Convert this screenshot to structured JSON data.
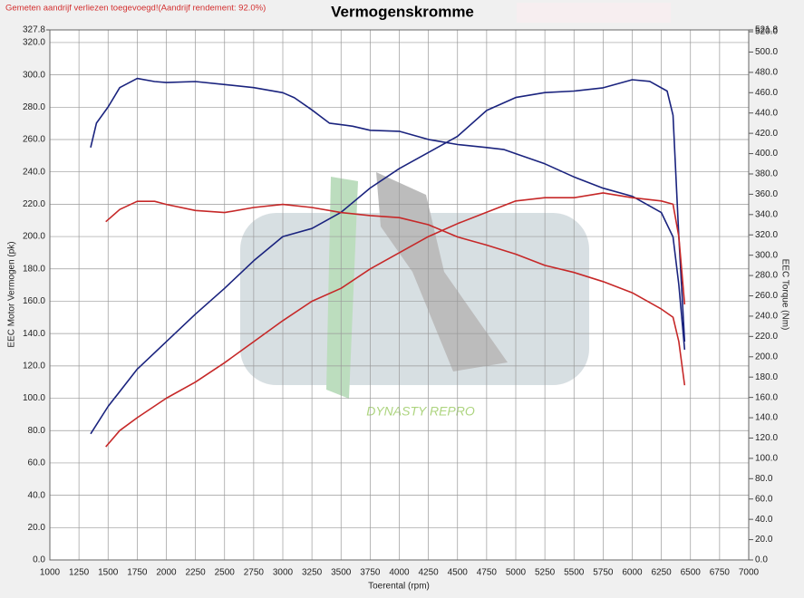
{
  "chart_data": {
    "type": "line",
    "title": "Vermogenskromme",
    "note": "Gemeten aandrijf verliezen toegevoegd!(Aandrijf rendement: 92.0%)",
    "watermark": "DYNASTY REPRO",
    "x_label": "Toerental (rpm)",
    "y_label": "EEC Motor Vermogen (pk)",
    "y2_label": "EEC Torque (Nm)",
    "grid": true,
    "xlim": [
      1000,
      7000
    ],
    "xticks": [
      1000,
      1250,
      1500,
      1750,
      2000,
      2250,
      2500,
      2750,
      3000,
      3250,
      3500,
      3750,
      4000,
      4250,
      4500,
      4750,
      5000,
      5250,
      5500,
      5750,
      6000,
      6250,
      6500,
      6750,
      7000
    ],
    "ylim": [
      0,
      327.8
    ],
    "yticks": [
      {
        "value": 0,
        "label": "0.0"
      },
      {
        "value": 20,
        "label": "20.0"
      },
      {
        "value": 40,
        "label": "40.0"
      },
      {
        "value": 60,
        "label": "60.0"
      },
      {
        "value": 80,
        "label": "80.0"
      },
      {
        "value": 100,
        "label": "100.0"
      },
      {
        "value": 120,
        "label": "120.0"
      },
      {
        "value": 140,
        "label": "140.0"
      },
      {
        "value": 160,
        "label": "160.0"
      },
      {
        "value": 180,
        "label": "180.0"
      },
      {
        "value": 200,
        "label": "200.0"
      },
      {
        "value": 220,
        "label": "220.0"
      },
      {
        "value": 240,
        "label": "240.0"
      },
      {
        "value": 260,
        "label": "260.0"
      },
      {
        "value": 280,
        "label": "280.0"
      },
      {
        "value": 300,
        "label": "300.0"
      },
      {
        "value": 320,
        "label": "320.0"
      },
      327.8
    ],
    "y2lim": [
      0,
      521.8
    ],
    "y2ticks": [
      {
        "value": 0,
        "label": "0.0"
      },
      {
        "value": 20,
        "label": "20.0"
      },
      {
        "value": 40,
        "label": "40.0"
      },
      {
        "value": 60,
        "label": "60.0"
      },
      {
        "value": 80,
        "label": "80.0"
      },
      {
        "value": 100,
        "label": "100.0"
      },
      {
        "value": 120,
        "label": "120.0"
      },
      {
        "value": 140,
        "label": "140.0"
      },
      {
        "value": 160,
        "label": "160.0"
      },
      {
        "value": 180,
        "label": "180.0"
      },
      {
        "value": 200,
        "label": "200.0"
      },
      {
        "value": 220,
        "label": "220.0"
      },
      {
        "value": 240,
        "label": "240.0"
      },
      {
        "value": 260,
        "label": "260.0"
      },
      {
        "value": 280,
        "label": "280.0"
      },
      {
        "value": 300,
        "label": "300.0"
      },
      {
        "value": 320,
        "label": "320.0"
      },
      {
        "value": 340,
        "label": "340.0"
      },
      {
        "value": 360,
        "label": "360.0"
      },
      {
        "value": 380,
        "label": "380.0"
      },
      {
        "value": 400,
        "label": "400.0"
      },
      {
        "value": 420,
        "label": "420.0"
      },
      {
        "value": 440,
        "label": "440.0"
      },
      {
        "value": 460,
        "label": "460.0"
      },
      {
        "value": 480,
        "label": "480.0"
      },
      {
        "value": 500,
        "label": "500.0"
      },
      {
        "value": 520,
        "label": "520.0"
      },
      521.8
    ],
    "series": [
      {
        "color": "#1a237e",
        "axis": "y",
        "x": [
          1350,
          1500,
          1750,
          2000,
          2250,
          2500,
          2750,
          3000,
          3250,
          3500,
          3750,
          4000,
          4250,
          4500,
          4750,
          5000,
          5250,
          5500,
          5750,
          6000,
          6150,
          6300,
          6350,
          6400,
          6450
        ],
        "values": [
          78,
          95,
          118,
          135,
          152,
          168,
          185,
          200,
          205,
          215,
          230,
          242,
          252,
          262,
          278,
          286,
          289,
          290,
          292,
          297,
          296,
          290,
          275,
          200,
          135
        ]
      },
      {
        "color": "#1a237e",
        "axis": "y2",
        "x": [
          1350,
          1400,
          1500,
          1600,
          1750,
          1900,
          2000,
          2250,
          2500,
          2750,
          3000,
          3100,
          3250,
          3400,
          3600,
          3750,
          4000,
          4250,
          4500,
          4750,
          4900,
          5000,
          5250,
          5500,
          5750,
          6000,
          6250,
          6350,
          6400,
          6450
        ],
        "values": [
          406,
          430,
          446,
          465,
          474,
          471,
          470,
          471,
          468,
          465,
          460,
          455,
          443,
          430,
          427,
          423,
          422,
          414,
          409,
          406,
          404,
          400,
          390,
          377,
          366,
          358,
          342,
          318,
          271,
          207
        ]
      },
      {
        "color": "#c62828",
        "axis": "y",
        "x": [
          1480,
          1600,
          1750,
          2000,
          2250,
          2500,
          2750,
          3000,
          3250,
          3500,
          3750,
          4000,
          4250,
          4500,
          4750,
          5000,
          5250,
          5500,
          5750,
          6000,
          6250,
          6350,
          6400,
          6450
        ],
        "values": [
          70,
          80,
          88,
          100,
          110,
          122,
          135,
          148,
          160,
          168,
          180,
          190,
          200,
          208,
          215,
          222,
          224,
          224,
          227,
          224,
          222,
          220,
          200,
          158
        ]
      },
      {
        "color": "#c62828",
        "axis": "y2",
        "x": [
          1480,
          1600,
          1750,
          1900,
          2000,
          2250,
          2500,
          2750,
          3000,
          3250,
          3500,
          3750,
          4000,
          4250,
          4500,
          4750,
          5000,
          5250,
          5500,
          5750,
          6000,
          6250,
          6350,
          6400,
          6450
        ],
        "values": [
          333,
          345,
          353,
          353,
          350,
          344,
          342,
          347,
          350,
          347,
          342,
          339,
          337,
          330,
          318,
          310,
          301,
          290,
          283,
          274,
          263,
          247,
          239,
          215,
          172
        ]
      }
    ]
  }
}
